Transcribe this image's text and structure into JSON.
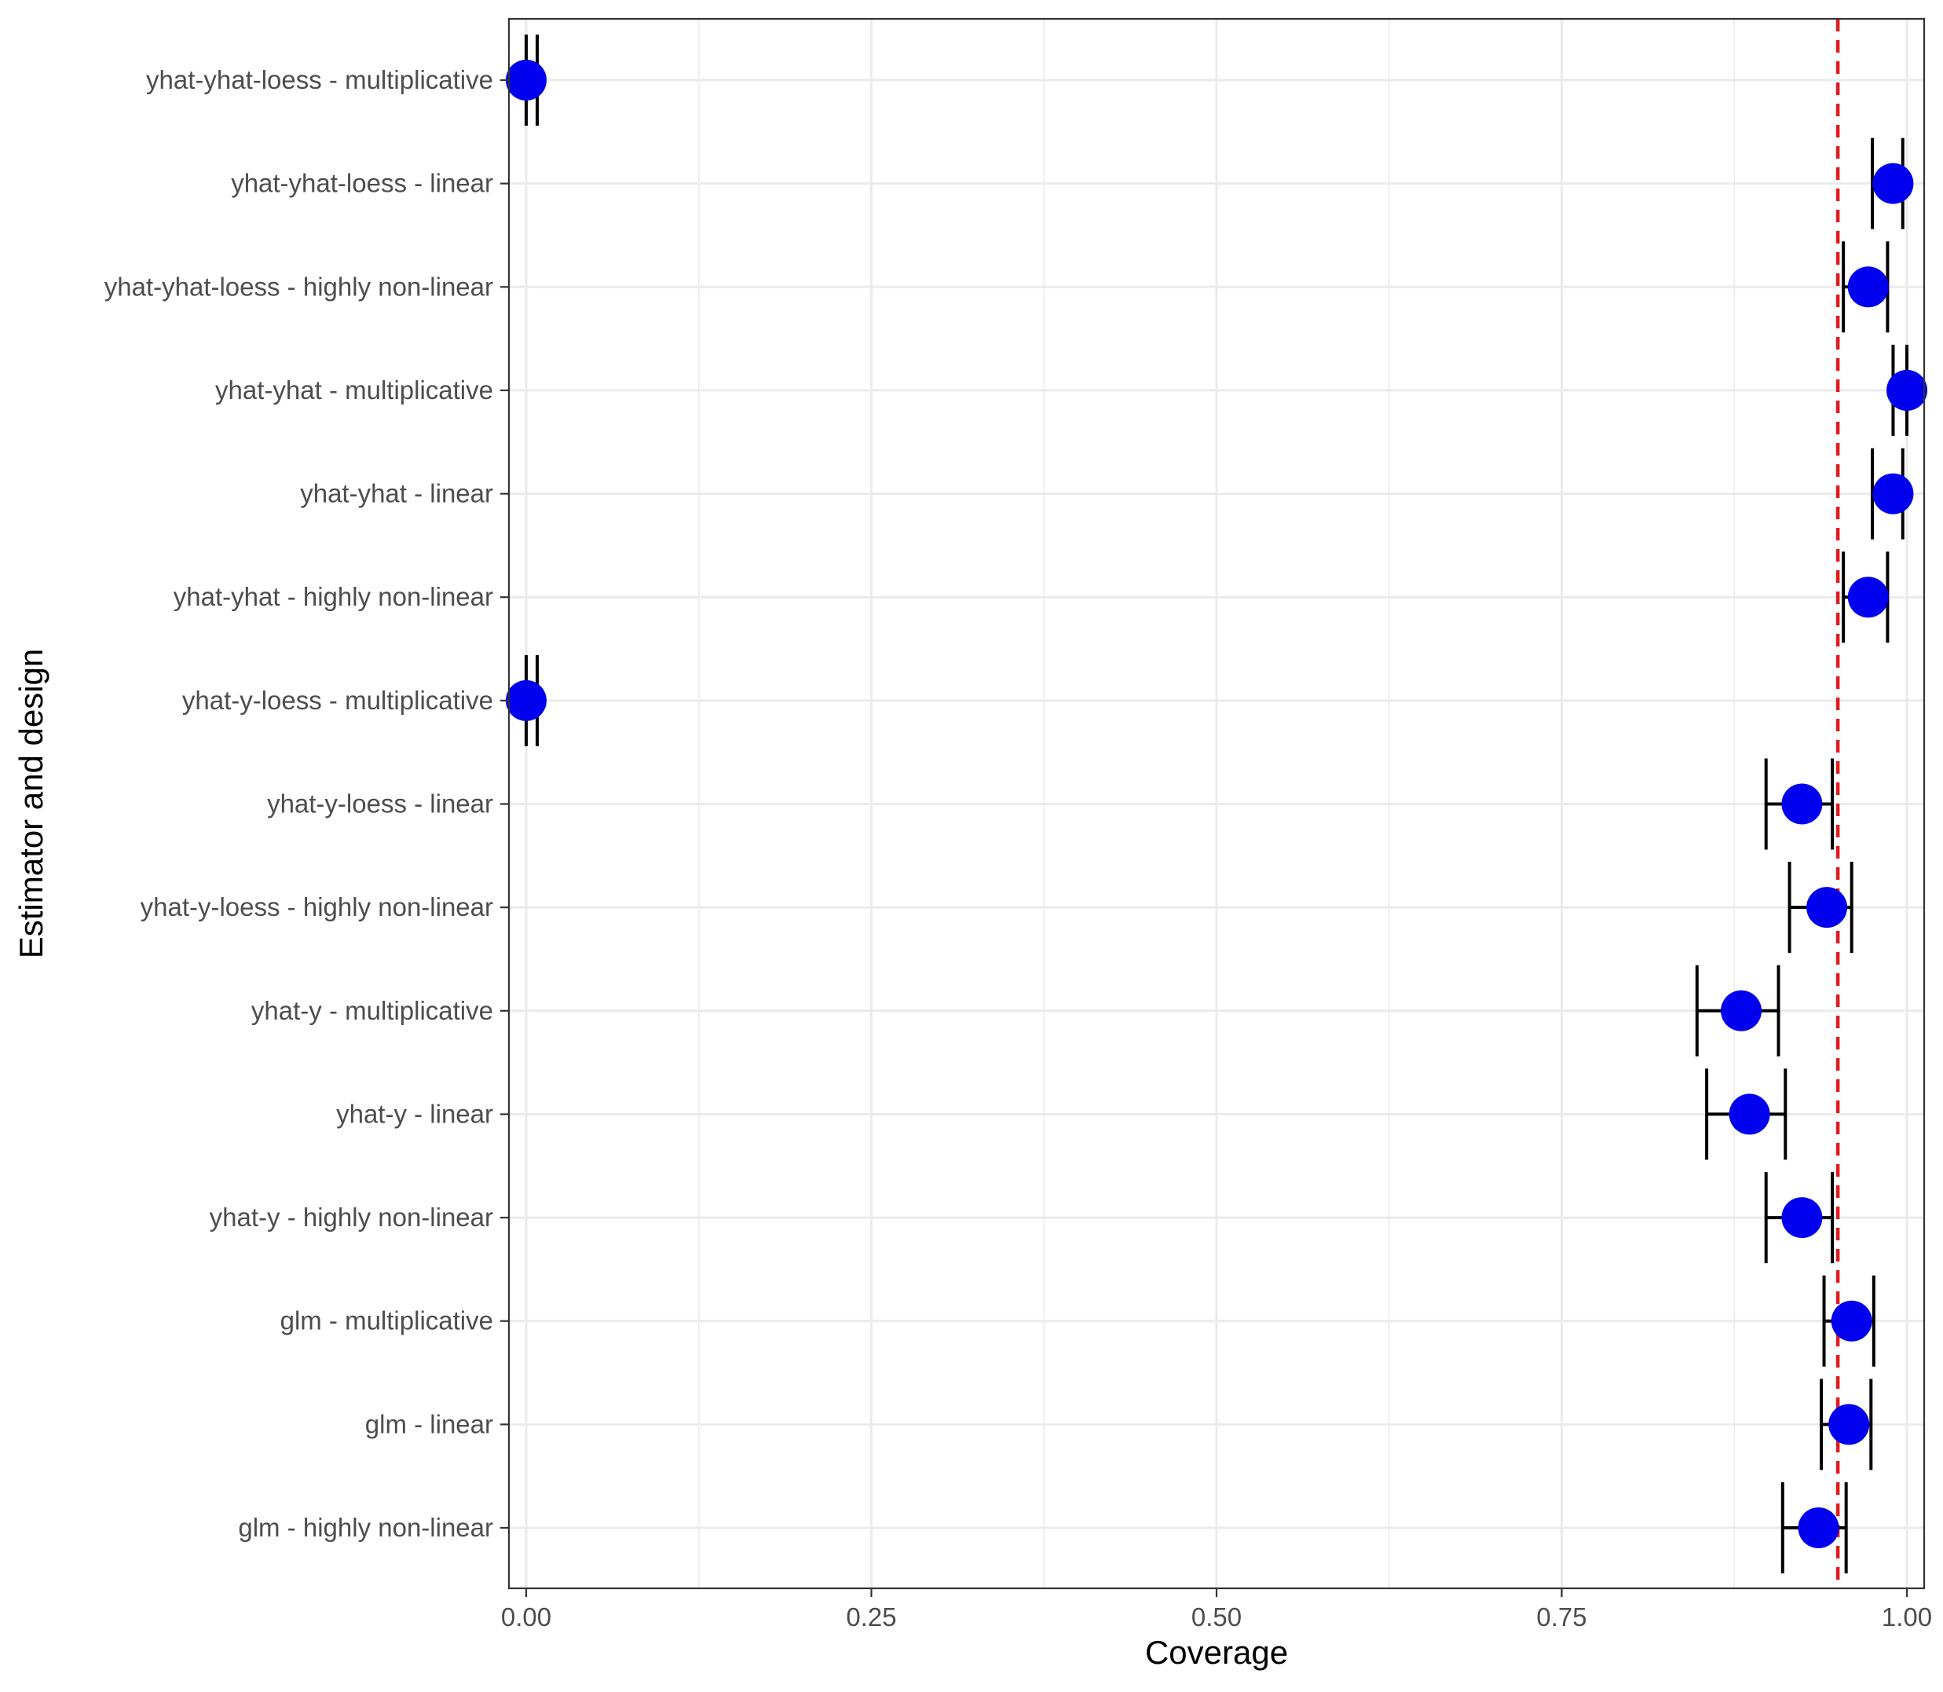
{
  "chart_data": {
    "type": "scatter",
    "xlabel": "Coverage",
    "ylabel": "Estimator and design",
    "xlim": [
      -0.0125,
      1.0125
    ],
    "x_ticks": [
      {
        "value": 0.0,
        "label": "0.00"
      },
      {
        "value": 0.25,
        "label": "0.25"
      },
      {
        "value": 0.5,
        "label": "0.50"
      },
      {
        "value": 0.75,
        "label": "0.75"
      },
      {
        "value": 1.0,
        "label": "1.00"
      }
    ],
    "x_minor_ticks": [
      0.125,
      0.375,
      0.625,
      0.875
    ],
    "reference_line": {
      "x": 0.95,
      "color": "#e41a1c",
      "style": "dashed"
    },
    "point_color": "#0000ee",
    "errorbar_color": "#000000",
    "grid": true,
    "categories": [
      "yhat-yhat-loess - multiplicative",
      "yhat-yhat-loess - linear",
      "yhat-yhat-loess - highly non-linear",
      "yhat-yhat - multiplicative",
      "yhat-yhat - linear",
      "yhat-yhat - highly non-linear",
      "yhat-y-loess - multiplicative",
      "yhat-y-loess - linear",
      "yhat-y-loess - highly non-linear",
      "yhat-y - multiplicative",
      "yhat-y - linear",
      "yhat-y - highly non-linear",
      "glm - multiplicative",
      "glm - linear",
      "glm - highly non-linear"
    ],
    "values": [
      0.0,
      0.99,
      0.972,
      1.0,
      0.99,
      0.972,
      0.0,
      0.924,
      0.942,
      0.88,
      0.886,
      0.924,
      0.96,
      0.958,
      0.936
    ],
    "lower": [
      0.0,
      0.975,
      0.954,
      0.99,
      0.975,
      0.954,
      0.0,
      0.898,
      0.915,
      0.848,
      0.855,
      0.898,
      0.94,
      0.938,
      0.91
    ],
    "upper": [
      0.008,
      0.997,
      0.986,
      1.0,
      0.997,
      0.986,
      0.008,
      0.946,
      0.96,
      0.907,
      0.912,
      0.946,
      0.976,
      0.974,
      0.956
    ]
  }
}
